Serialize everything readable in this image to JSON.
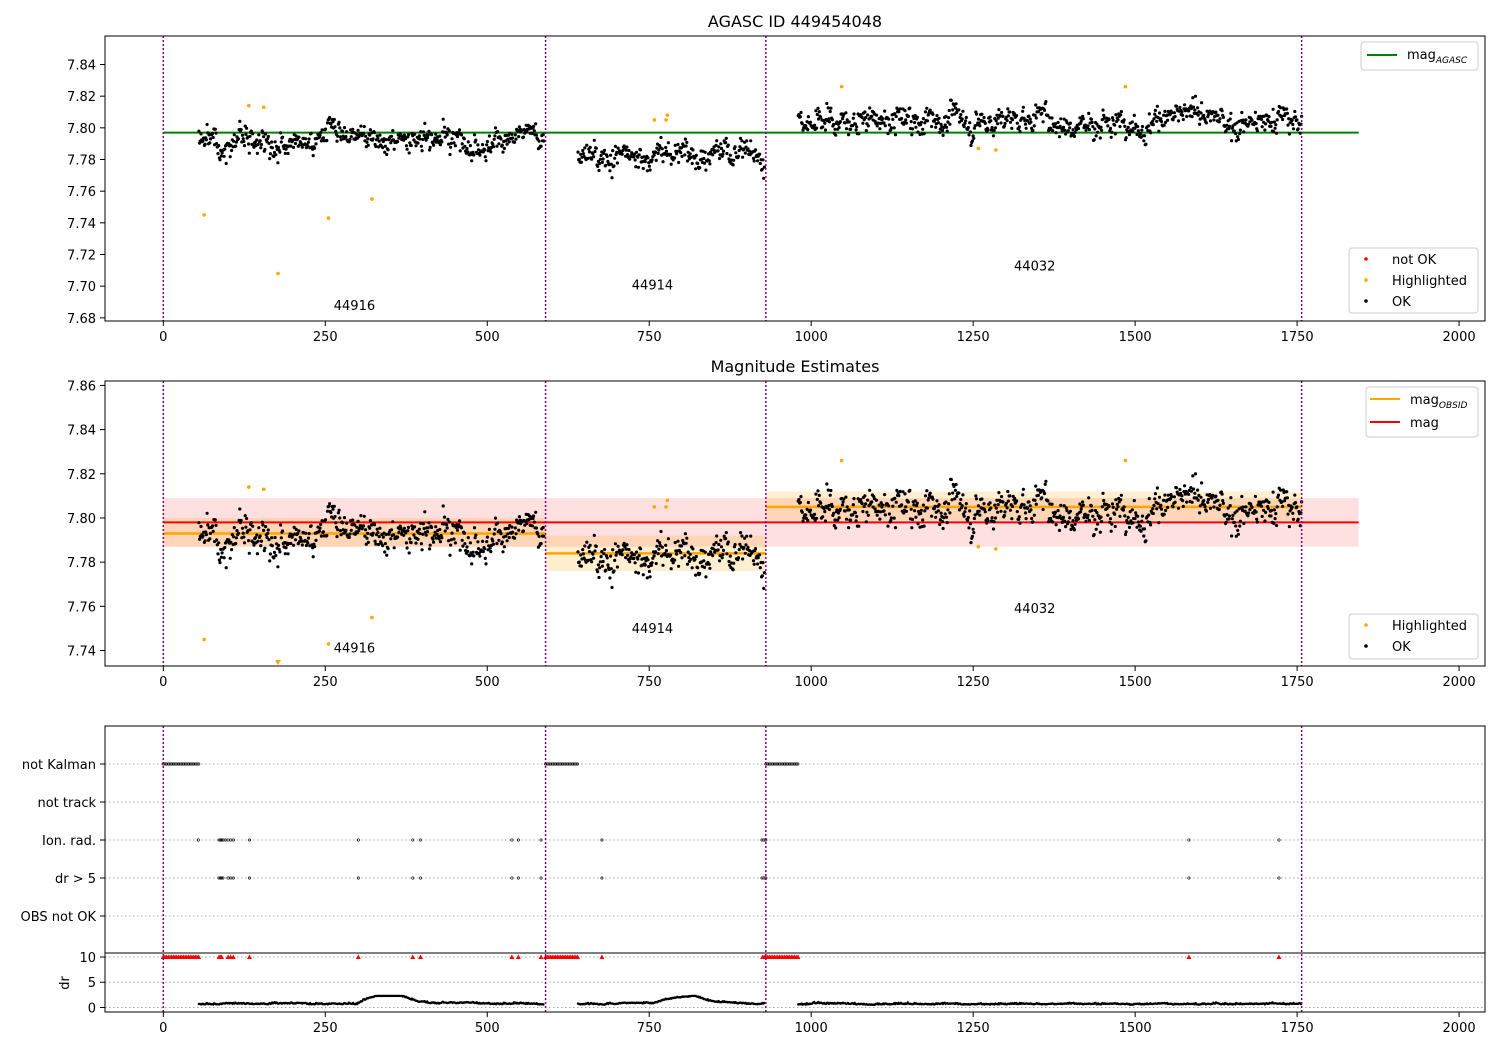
{
  "chart_data": [
    {
      "type": "scatter",
      "title": "AGASC ID 449454048",
      "xlim": [
        -90,
        2040
      ],
      "ylim": [
        7.678,
        7.858
      ],
      "xticks": [
        0,
        250,
        500,
        750,
        1000,
        1250,
        1500,
        1750,
        2000
      ],
      "xtick_labels": [
        "0",
        "250",
        "500",
        "750",
        "1000",
        "1250",
        "1500",
        "1750",
        "2000"
      ],
      "yticks": [
        7.68,
        7.7,
        7.72,
        7.74,
        7.76,
        7.78,
        7.8,
        7.82,
        7.84
      ],
      "ytick_labels": [
        "7.68",
        "7.70",
        "7.72",
        "7.74",
        "7.76",
        "7.78",
        "7.80",
        "7.82",
        "7.84"
      ],
      "obsid_boundaries": [
        0,
        590,
        930,
        1757
      ],
      "obsid_labels": [
        {
          "text": "44916",
          "x": 295,
          "y": 7.685
        },
        {
          "text": "44914",
          "x": 755,
          "y": 7.698
        },
        {
          "text": "44032",
          "x": 1345,
          "y": 7.71
        }
      ],
      "segments": [
        {
          "x_start": 55,
          "x_end": 588,
          "mean": 7.794,
          "std": 0.0075
        },
        {
          "x_start": 640,
          "x_end": 928,
          "mean": 7.783,
          "std": 0.0075
        },
        {
          "x_start": 980,
          "x_end": 1757,
          "mean": 7.805,
          "std": 0.0075
        }
      ],
      "lines": [
        {
          "name": "mag_AGASC",
          "value": 7.797,
          "x_start": 0,
          "x_end": 1845,
          "color": "#008000"
        }
      ],
      "highlighted_points": [
        {
          "x": 63,
          "y": 7.745
        },
        {
          "x": 132,
          "y": 7.814
        },
        {
          "x": 155,
          "y": 7.813
        },
        {
          "x": 177,
          "y": 7.708
        },
        {
          "x": 255,
          "y": 7.743
        },
        {
          "x": 322,
          "y": 7.755
        },
        {
          "x": 758,
          "y": 7.805
        },
        {
          "x": 776,
          "y": 7.805
        },
        {
          "x": 778,
          "y": 7.808
        },
        {
          "x": 1047,
          "y": 7.826
        },
        {
          "x": 1258,
          "y": 7.787
        },
        {
          "x": 1285,
          "y": 7.786
        },
        {
          "x": 1485,
          "y": 7.826
        }
      ],
      "legend_top": {
        "position": "top-right",
        "entries": [
          {
            "name": "mag",
            "sub": "AGASC",
            "color": "#008000"
          }
        ]
      },
      "legend_bottom": {
        "position": "bottom-right",
        "entries": [
          {
            "name": "not OK",
            "color": "#ff0000"
          },
          {
            "name": "Highlighted",
            "color": "#ffa500"
          },
          {
            "name": "OK",
            "color": "#000000"
          }
        ]
      }
    },
    {
      "type": "scatter",
      "title": "Magnitude Estimates",
      "xlim": [
        -90,
        2040
      ],
      "ylim": [
        7.733,
        7.862
      ],
      "xticks": [
        0,
        250,
        500,
        750,
        1000,
        1250,
        1500,
        1750,
        2000
      ],
      "xtick_labels": [
        "0",
        "250",
        "500",
        "750",
        "1000",
        "1250",
        "1500",
        "1750",
        "2000"
      ],
      "yticks": [
        7.74,
        7.76,
        7.78,
        7.8,
        7.82,
        7.84,
        7.86
      ],
      "ytick_labels": [
        "7.74",
        "7.76",
        "7.78",
        "7.80",
        "7.82",
        "7.84",
        "7.86"
      ],
      "obsid_boundaries": [
        0,
        590,
        930,
        1757
      ],
      "obsid_labels": [
        {
          "text": "44916",
          "x": 295,
          "y": 7.739
        },
        {
          "text": "44914",
          "x": 755,
          "y": 7.748
        },
        {
          "text": "44032",
          "x": 1345,
          "y": 7.757
        }
      ],
      "mag": {
        "value": 7.798,
        "band": [
          7.787,
          7.809
        ],
        "x_start": 0,
        "x_end": 1845,
        "color": "#ff0000"
      },
      "mag_obsid": [
        {
          "x_start": 0,
          "x_end": 590,
          "value": 7.793,
          "band": [
            7.787,
            7.8
          ]
        },
        {
          "x_start": 590,
          "x_end": 930,
          "value": 7.784,
          "band": [
            7.776,
            7.792
          ]
        },
        {
          "x_start": 930,
          "x_end": 1757,
          "value": 7.805,
          "band": [
            7.799,
            7.812
          ]
        }
      ],
      "highlighted_points": [
        {
          "x": 63,
          "y": 7.745
        },
        {
          "x": 132,
          "y": 7.814
        },
        {
          "x": 155,
          "y": 7.813
        },
        {
          "x": 255,
          "y": 7.743
        },
        {
          "x": 322,
          "y": 7.755
        },
        {
          "x": 758,
          "y": 7.805
        },
        {
          "x": 776,
          "y": 7.805
        },
        {
          "x": 778,
          "y": 7.808
        },
        {
          "x": 1047,
          "y": 7.826
        },
        {
          "x": 1258,
          "y": 7.787
        },
        {
          "x": 1285,
          "y": 7.786
        },
        {
          "x": 1485,
          "y": 7.826
        }
      ],
      "offscale_marker": {
        "x": 177,
        "direction": "down"
      },
      "legend_top": {
        "position": "top-right",
        "entries": [
          {
            "name": "mag",
            "sub": "OBSID",
            "color": "#ffa500"
          },
          {
            "name": "mag",
            "sub": "",
            "color": "#ff0000"
          }
        ]
      },
      "legend_bottom": {
        "position": "bottom-right",
        "entries": [
          {
            "name": "Highlighted",
            "color": "#ffa500"
          },
          {
            "name": "OK",
            "color": "#000000"
          }
        ]
      }
    },
    {
      "type": "scatter",
      "xlim": [
        -90,
        2040
      ],
      "xticks": [
        0,
        250,
        500,
        750,
        1000,
        1250,
        1500,
        1750,
        2000
      ],
      "xtick_labels": [
        "0",
        "250",
        "500",
        "750",
        "1000",
        "1250",
        "1500",
        "1750",
        "2000"
      ],
      "flag_rows": [
        "not Kalman",
        "not track",
        "Ion. rad.",
        "dr > 5",
        "OBS not OK"
      ],
      "flag_runs": {
        "not Kalman": [
          [
            0,
            55
          ],
          [
            590,
            640
          ],
          [
            930,
            980
          ]
        ],
        "not track": [],
        "Ion. rad.": [],
        "dr > 5": [],
        "OBS not OK": []
      },
      "flag_points": {
        "Ion. rad.": [
          54,
          86,
          88,
          90,
          92,
          96,
          100,
          104,
          108,
          133,
          301,
          385,
          397,
          538,
          548,
          583,
          677,
          924,
          927,
          930,
          1583,
          1722
        ],
        "dr > 5": [
          86,
          88,
          90,
          92,
          100,
          104,
          108,
          133,
          301,
          385,
          397,
          538,
          548,
          583,
          677,
          924,
          927,
          930,
          1583,
          1722
        ]
      },
      "dr_ylabel": "dr",
      "dr_yticks": [
        0,
        5,
        10
      ],
      "dr_ytick_labels": [
        "0",
        "5",
        "10"
      ],
      "dr_ylim": [
        -0.3,
        10
      ],
      "dr_capped_points": [
        86,
        88,
        90,
        100,
        104,
        108,
        133,
        301,
        385,
        397,
        538,
        548,
        583,
        677,
        1583,
        1722
      ],
      "dr_capped_runs": [
        [
          0,
          55
        ],
        [
          590,
          640
        ],
        [
          925,
          980
        ]
      ]
    }
  ],
  "colors": {
    "ok": "#000000",
    "highlighted": "#ffa500",
    "not_ok": "#ff0000",
    "mag_agasc": "#008000",
    "mag": "#ff0000",
    "mag_obsid": "#ffa500",
    "boundary": "#800080"
  }
}
